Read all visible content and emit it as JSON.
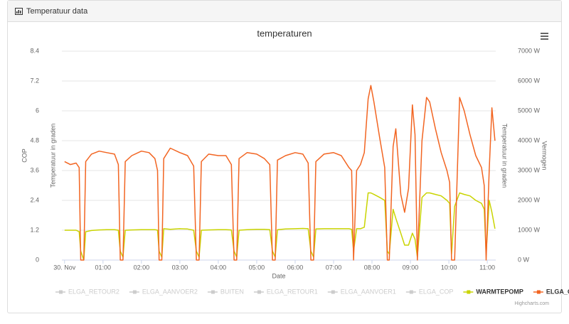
{
  "panel": {
    "title": "Temperatuur data"
  },
  "chart_data": {
    "type": "line",
    "title": "temperaturen",
    "x_title": "Date",
    "y_title": "COP",
    "y_title_2": "Temperatuur in graden",
    "y2_title": "Temperatuur in graden",
    "y2_title_2": "Vermogen",
    "credits": "Highcharts.com",
    "grid": true,
    "xlim": [
      -0.07,
      11.22
    ],
    "xticks": [
      {
        "value": 0,
        "label": "30. Nov"
      },
      {
        "value": 1,
        "label": "01:00"
      },
      {
        "value": 2,
        "label": "02:00"
      },
      {
        "value": 3,
        "label": "03:00"
      },
      {
        "value": 4,
        "label": "04:00"
      },
      {
        "value": 5,
        "label": "05:00"
      },
      {
        "value": 6,
        "label": "06:00"
      },
      {
        "value": 7,
        "label": "07:00"
      },
      {
        "value": 8,
        "label": "08:00"
      },
      {
        "value": 9,
        "label": "09:00"
      },
      {
        "value": 10,
        "label": "10:00"
      },
      {
        "value": 11,
        "label": "11:00"
      }
    ],
    "ylim": [
      0,
      8.4
    ],
    "yticks": [
      0,
      1.2,
      2.4,
      3.6,
      4.8,
      6,
      7.2,
      8.4
    ],
    "y2lim": [
      0,
      7000
    ],
    "y2ticks": [
      {
        "value": 0,
        "label": "0 W"
      },
      {
        "value": 1000,
        "label": "1000 W"
      },
      {
        "value": 2000,
        "label": "2000 W"
      },
      {
        "value": 3000,
        "label": "3000 W"
      },
      {
        "value": 4000,
        "label": "4000 W"
      },
      {
        "value": 5000,
        "label": "5000 W"
      },
      {
        "value": 6000,
        "label": "6000 W"
      },
      {
        "value": 7000,
        "label": "7000 W"
      }
    ],
    "x": [
      0,
      0.15,
      0.3,
      0.38,
      0.42,
      0.5,
      0.55,
      0.7,
      0.9,
      1.1,
      1.3,
      1.4,
      1.45,
      1.52,
      1.58,
      1.75,
      2.0,
      2.2,
      2.35,
      2.42,
      2.46,
      2.53,
      2.58,
      2.75,
      3.0,
      3.2,
      3.36,
      3.43,
      3.5,
      3.56,
      3.75,
      4.0,
      4.2,
      4.34,
      4.41,
      4.48,
      4.54,
      4.75,
      5.0,
      5.2,
      5.34,
      5.41,
      5.48,
      5.54,
      5.75,
      6.0,
      6.2,
      6.34,
      6.41,
      6.48,
      6.54,
      6.75,
      7.0,
      7.2,
      7.4,
      7.47,
      7.52,
      7.6,
      7.7,
      7.8,
      7.9,
      7.97,
      8.05,
      8.2,
      8.33,
      8.4,
      8.45,
      8.55,
      8.62,
      8.75,
      8.85,
      8.95,
      9.05,
      9.12,
      9.18,
      9.3,
      9.42,
      9.5,
      9.65,
      9.8,
      9.95,
      10.02,
      10.07,
      10.15,
      10.28,
      10.4,
      10.55,
      10.7,
      10.85,
      10.92,
      10.97,
      11.05,
      11.12,
      11.2
    ],
    "series": [
      {
        "name": "ELGA_RETOUR2",
        "visible": false
      },
      {
        "name": "ELGA_AANVOER2",
        "visible": false
      },
      {
        "name": "BUITEN",
        "visible": false
      },
      {
        "name": "ELGA_RETOUR1",
        "visible": false
      },
      {
        "name": "ELGA_AANVOER1",
        "visible": false
      },
      {
        "name": "ELGA_COP",
        "visible": false
      },
      {
        "name": "WARMTEPOMP",
        "color": "#c9d400",
        "axis": "y2",
        "visible": true,
        "values": [
          1000,
          1000,
          1000,
          950,
          300,
          0,
          950,
          990,
          1010,
          1020,
          1020,
          1000,
          300,
          100,
          1000,
          1010,
          1020,
          1020,
          1020,
          1000,
          300,
          100,
          1050,
          1030,
          1050,
          1040,
          1000,
          300,
          100,
          1000,
          1010,
          1020,
          1020,
          1010,
          300,
          100,
          1000,
          1020,
          1030,
          1030,
          1020,
          300,
          100,
          1020,
          1040,
          1050,
          1060,
          1050,
          300,
          100,
          1040,
          1050,
          1050,
          1050,
          1050,
          1030,
          300,
          1050,
          1050,
          1100,
          2250,
          2250,
          2200,
          2100,
          2000,
          300,
          200,
          1700,
          1400,
          900,
          500,
          500,
          900,
          700,
          100,
          2100,
          2250,
          2250,
          2200,
          2150,
          2000,
          1900,
          200,
          1800,
          2250,
          2200,
          2150,
          2000,
          1900,
          1700,
          200,
          2000,
          1600,
          1050
        ]
      },
      {
        "name": "ELGA_OUTPUT",
        "color": "#f26522",
        "axis": "y2",
        "visible": true,
        "values": [
          3300,
          3200,
          3250,
          3100,
          0,
          0,
          3300,
          3550,
          3650,
          3600,
          3550,
          3200,
          0,
          0,
          3300,
          3500,
          3650,
          3600,
          3400,
          3000,
          0,
          0,
          3400,
          3750,
          3600,
          3500,
          3150,
          0,
          0,
          3300,
          3550,
          3500,
          3500,
          3200,
          0,
          0,
          3400,
          3600,
          3550,
          3400,
          3200,
          0,
          0,
          3350,
          3500,
          3600,
          3550,
          3250,
          0,
          0,
          3300,
          3550,
          3600,
          3500,
          3100,
          3000,
          0,
          3000,
          3200,
          3600,
          5400,
          5850,
          5300,
          4100,
          3100,
          0,
          0,
          3800,
          4400,
          2200,
          1600,
          2400,
          5200,
          4200,
          0,
          4000,
          5450,
          5300,
          4400,
          3600,
          3000,
          2600,
          0,
          0,
          5450,
          5000,
          4200,
          3500,
          3100,
          2500,
          0,
          3000,
          5100,
          4000
        ]
      }
    ]
  }
}
